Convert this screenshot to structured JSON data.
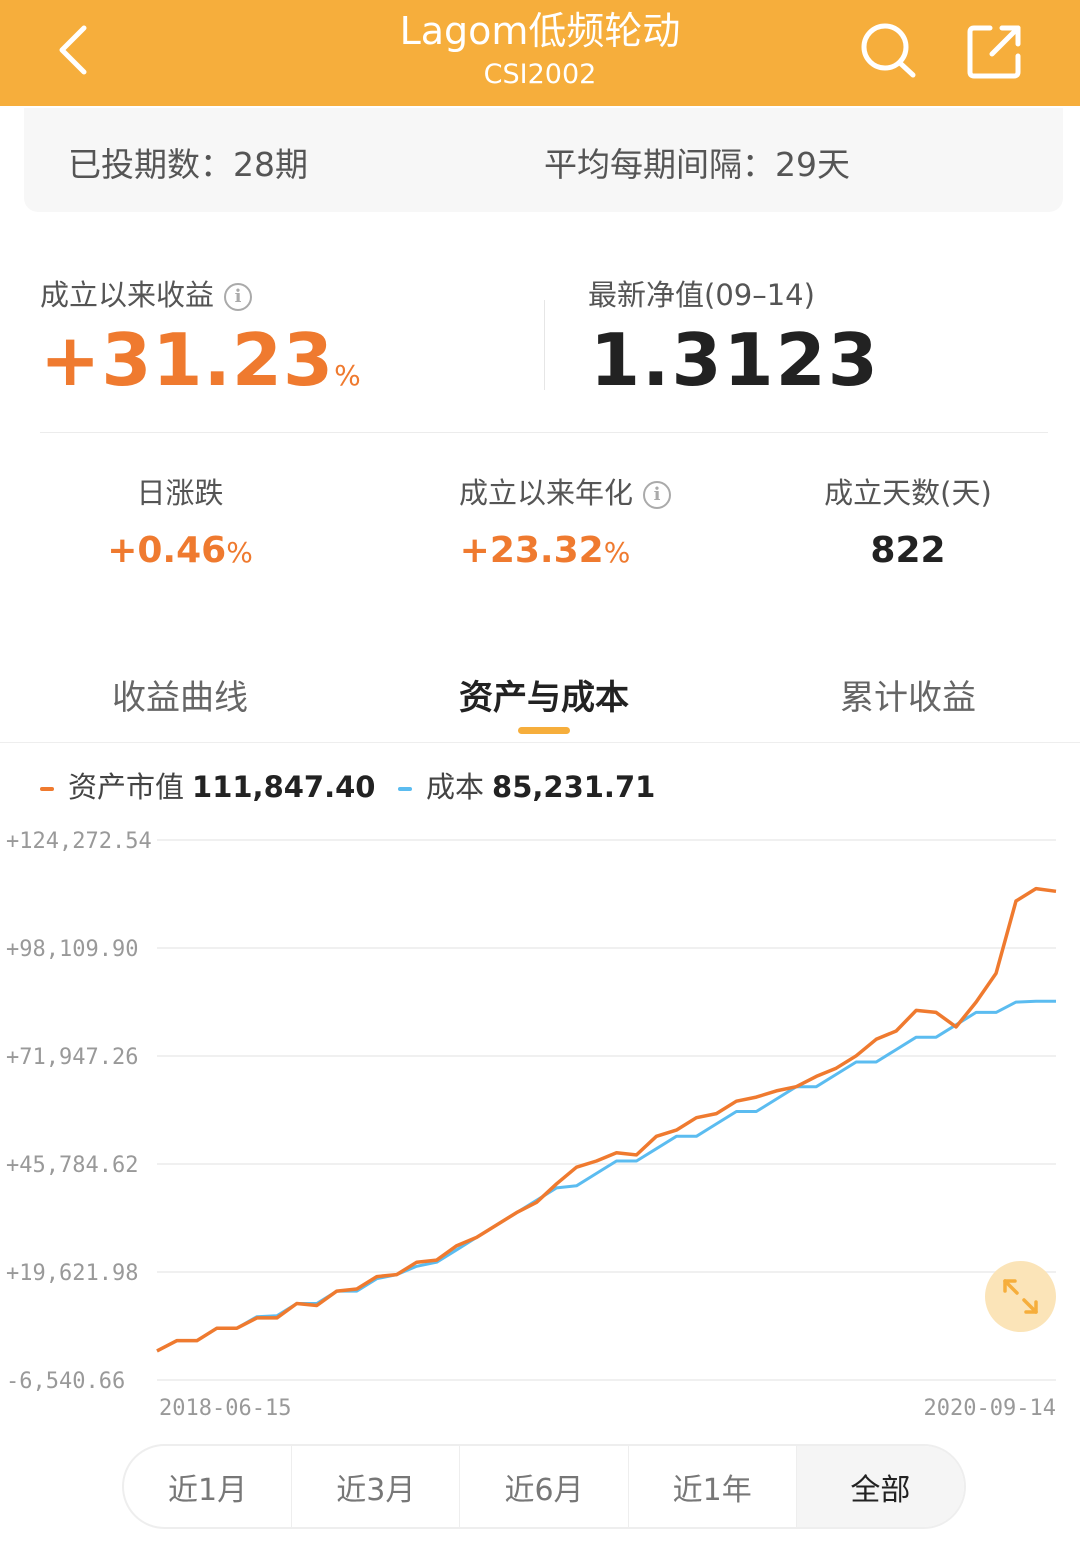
{
  "header": {
    "title": "Lagom低频轮动",
    "subtitle": "CSI2002",
    "back_icon": "chevron-left-icon",
    "search_icon": "search-icon",
    "share_icon": "share-icon"
  },
  "period": {
    "invested_label": "已投期数：",
    "invested_value": "28期",
    "interval_label": "平均每期间隔：",
    "interval_value": "29天"
  },
  "stats": {
    "return_label": "成立以来收益",
    "return_value": "+31.23",
    "return_unit": "%",
    "nav_label": "最新净值(09–14)",
    "nav_value": "1.3123",
    "daily_label": "日涨跌",
    "daily_value": "+0.46",
    "daily_unit": "%",
    "annual_label": "成立以来年化",
    "annual_value": "+23.32",
    "annual_unit": "%",
    "days_label": "成立天数(天)",
    "days_value": "822"
  },
  "tabs": [
    {
      "label": "收益曲线",
      "active": false
    },
    {
      "label": "资产与成本",
      "active": true
    },
    {
      "label": "累计收益",
      "active": false
    }
  ],
  "legend": {
    "asset_label": "资产市值",
    "asset_value": "111,847.40",
    "asset_color": "#ef7a2f",
    "cost_label": "成本",
    "cost_value": "85,231.71",
    "cost_color": "#5bbcf0"
  },
  "chart_data": {
    "type": "line",
    "y_ticks": [
      "+124,272.54",
      "+98,109.90",
      "+71,947.26",
      "+45,784.62",
      "+19,621.98",
      "-6,540.66"
    ],
    "ylim": [
      -6540.66,
      124272.54
    ],
    "x_labels": [
      "2018-06-15",
      "2020-09-14"
    ],
    "grid": true,
    "series": [
      {
        "name": "资产市值",
        "color": "#ef7a2f",
        "values": [
          500,
          3000,
          3000,
          6000,
          6000,
          8500,
          8500,
          12000,
          11500,
          15000,
          15500,
          18500,
          19000,
          22000,
          22500,
          26000,
          28000,
          31000,
          34000,
          36500,
          41000,
          45000,
          46500,
          48500,
          48000,
          52500,
          54000,
          57000,
          58000,
          61000,
          62000,
          63500,
          64500,
          67000,
          69000,
          72000,
          76000,
          78000,
          83000,
          82500,
          79000,
          85000,
          92000,
          109500,
          112500,
          111847
        ]
      },
      {
        "name": "成本",
        "color": "#5bbcf0",
        "values": [
          500,
          3000,
          3000,
          6000,
          6000,
          8800,
          9000,
          12000,
          12000,
          15000,
          15000,
          18000,
          19000,
          21000,
          22000,
          25000,
          28000,
          31000,
          34000,
          37000,
          40000,
          40500,
          43500,
          46500,
          46500,
          49500,
          52500,
          52500,
          55500,
          58500,
          58500,
          61500,
          64500,
          64500,
          67500,
          70500,
          70500,
          73500,
          76500,
          76500,
          79500,
          82500,
          82500,
          85000,
          85231,
          85231
        ]
      }
    ]
  },
  "range": {
    "options": [
      "近1月",
      "近3月",
      "近6月",
      "近1年",
      "全部"
    ],
    "selected": "全部"
  },
  "expand_icon": "expand-icon"
}
